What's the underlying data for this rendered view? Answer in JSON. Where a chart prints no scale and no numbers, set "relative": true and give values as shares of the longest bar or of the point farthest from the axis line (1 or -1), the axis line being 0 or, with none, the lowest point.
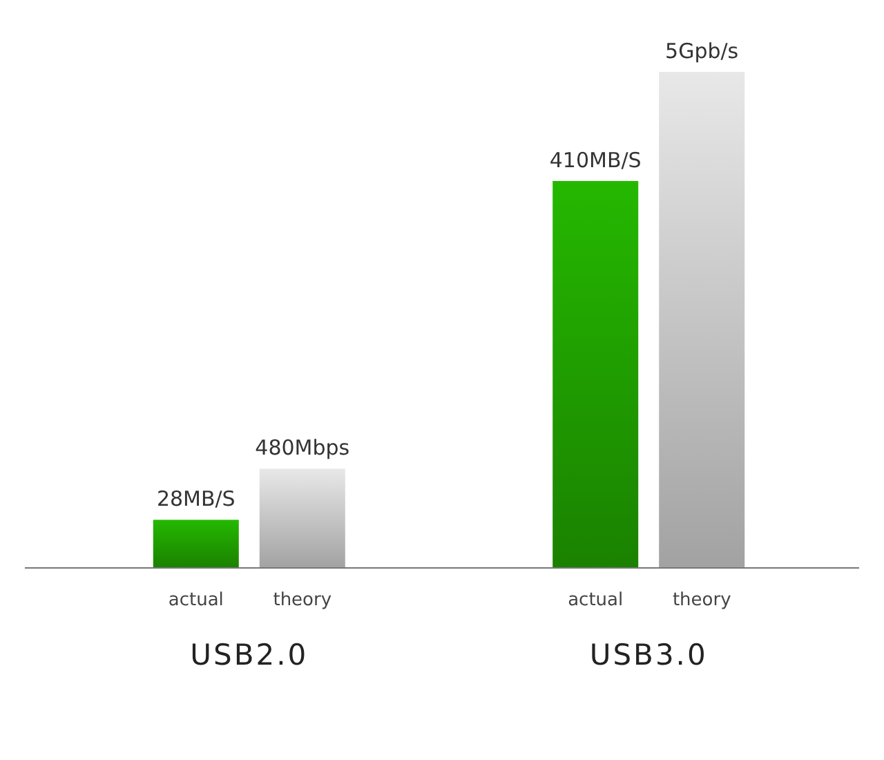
{
  "chart_data": {
    "type": "bar",
    "relative": true,
    "categories": [
      "USB2.0",
      "USB3.0"
    ],
    "series": [
      {
        "name": "actual",
        "color": "#1f9a00",
        "values": [
          0.097,
          0.78
        ]
      },
      {
        "name": "theory",
        "color": "#c2c2c2",
        "values": [
          0.2,
          1
        ]
      }
    ],
    "annotations": [
      "28MB/S",
      "480Mbps",
      "410MB/S",
      "5Gpb/s"
    ]
  }
}
